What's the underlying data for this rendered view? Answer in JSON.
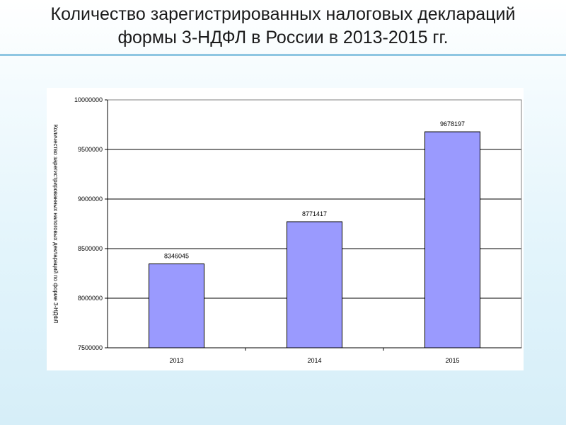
{
  "slide": {
    "title_line1": "Количество зарегистрированных налоговых деклараций",
    "title_line2": "формы  3-НДФЛ в России в 2013-2015 гг."
  },
  "colors": {
    "bar_fill": "#9a9afe",
    "bar_stroke": "#000000",
    "title_rule": "#8ec6e2"
  },
  "chart_data": {
    "type": "bar",
    "categories": [
      "2013",
      "2014",
      "2015"
    ],
    "values": [
      8346045,
      8771417,
      9678197
    ],
    "data_labels": [
      "8346045",
      "8771417",
      "9678197"
    ],
    "ylabel": "Количество зарегистрированных налоговых деклараций по форме 3-НДФЛ",
    "ylim": [
      7500000,
      10000000
    ],
    "yticks": [
      7500000,
      8000000,
      8500000,
      9000000,
      9500000,
      10000000
    ],
    "ytick_labels": [
      "7500000",
      "8000000",
      "8500000",
      "9000000",
      "9500000",
      "10000000"
    ],
    "grid": true,
    "legend": "none"
  }
}
